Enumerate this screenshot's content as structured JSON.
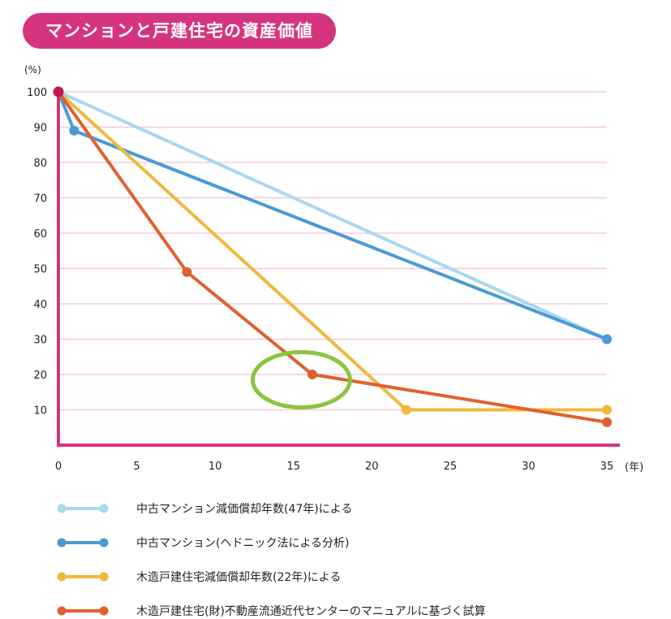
{
  "header": {
    "title": "マンションと戸建住宅の資産価値"
  },
  "chart_data": {
    "type": "line",
    "title": "マンションと戸建住宅の資産価値",
    "y_unit": "(%)",
    "x_unit": "(年)",
    "xlim": [
      0,
      35
    ],
    "ylim": [
      0,
      100
    ],
    "x_ticks": [
      0,
      5,
      10,
      15,
      20,
      25,
      30,
      35
    ],
    "y_ticks": [
      10,
      20,
      30,
      40,
      50,
      60,
      70,
      80,
      90,
      100
    ],
    "grid": "horizontal",
    "legend_position": "bottom",
    "series": [
      {
        "name": "中古マンション減価償却年数(47年)による",
        "color": "#a8d8f0",
        "x": [
          0,
          35
        ],
        "y": [
          100,
          30
        ],
        "markers": [
          35
        ]
      },
      {
        "name": "中古マンション(ヘドニック法による分析)",
        "color": "#4a9ad6",
        "x": [
          0,
          1,
          35
        ],
        "y": [
          100,
          89,
          30
        ],
        "markers": [
          1,
          35
        ]
      },
      {
        "name": "木造戸建住宅減価償却年数(22年)による",
        "color": "#f0b83c",
        "x": [
          0,
          22.2,
          35
        ],
        "y": [
          100,
          10,
          10
        ],
        "markers": [
          22.2,
          35
        ]
      },
      {
        "name": "木造戸建住宅(財)不動産流通近代センターのマニュアルに基づく試算",
        "color": "#e0602e",
        "x": [
          0,
          8.2,
          16.2,
          35
        ],
        "y": [
          100,
          49,
          20,
          6.5
        ],
        "markers": [
          8.2,
          16.2,
          35
        ]
      }
    ],
    "annotation": {
      "type": "highlight-circle",
      "color": "#8cc43c",
      "x": 15.5,
      "y": 18.5
    },
    "origin_marker_color": "#c2185b",
    "axis_color": "#d6337f",
    "grid_color": "#f0c2d6"
  }
}
